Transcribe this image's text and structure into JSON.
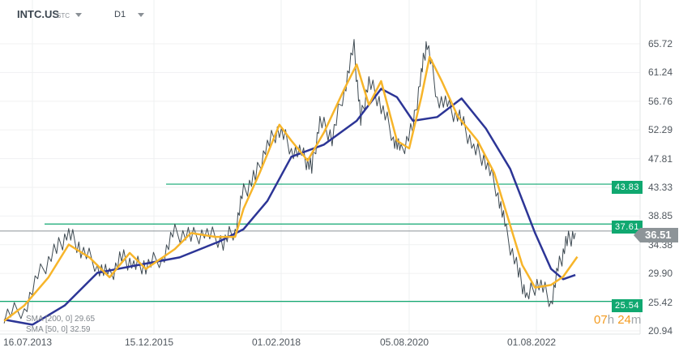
{
  "header": {
    "symbol": "INTC.US",
    "type": "STC",
    "timeframe": "D1"
  },
  "colors": {
    "price": "#3e4a52",
    "sma50": "#f7b52a",
    "sma200": "#2c3596",
    "level": "#10a870",
    "current": "#8d9498"
  },
  "legend": {
    "sma200": "SMA [200, 0] 29.65",
    "sma50": "SMA [50, 0] 32.59"
  },
  "timer": {
    "hours": "07",
    "h": "h",
    "minutes": "24",
    "m": "m"
  },
  "current_price": "36.51",
  "levels": [
    "43.83",
    "37.61",
    "25.54"
  ],
  "chart_data": {
    "type": "line",
    "y_ticks": [
      "65.72",
      "61.24",
      "56.76",
      "52.29",
      "47.81",
      "43.33",
      "38.85",
      "34.38",
      "29.90",
      "25.42",
      "20.94"
    ],
    "ylim": [
      20.94,
      65.72
    ],
    "x_ticks": [
      {
        "label": "16.07.2013",
        "year": 2013.54
      },
      {
        "label": "15.12.2015",
        "year": 2015.95
      },
      {
        "label": "01.02.2018",
        "year": 2018.08
      },
      {
        "label": "05.08.2020",
        "year": 2020.59
      },
      {
        "label": "01.08.2022",
        "year": 2022.58
      }
    ],
    "levels": [
      43.83,
      37.61,
      25.54
    ],
    "current": 36.51,
    "series": [
      {
        "name": "INTC.US",
        "points": [
          [
            2012.98,
            23.5
          ],
          [
            2013.38,
            24.4
          ],
          [
            2013.7,
            30.0
          ],
          [
            2014.02,
            33.7
          ],
          [
            2014.26,
            36.2
          ],
          [
            2014.5,
            33.7
          ],
          [
            2014.83,
            31.2
          ],
          [
            2015.07,
            29.3
          ],
          [
            2015.31,
            32.4
          ],
          [
            2015.55,
            31.2
          ],
          [
            2015.79,
            31.2
          ],
          [
            2016.09,
            32.4
          ],
          [
            2016.3,
            36.2
          ],
          [
            2016.57,
            35.6
          ],
          [
            2016.84,
            36.2
          ],
          [
            2017.11,
            34.9
          ],
          [
            2017.31,
            36.8
          ],
          [
            2017.45,
            42.5
          ],
          [
            2017.65,
            45.0
          ],
          [
            2017.85,
            50.0
          ],
          [
            2018.05,
            52.5
          ],
          [
            2018.28,
            49.4
          ],
          [
            2018.52,
            48.1
          ],
          [
            2018.68,
            46.2
          ],
          [
            2018.84,
            53.7
          ],
          [
            2019.08,
            51.2
          ],
          [
            2019.32,
            58.7
          ],
          [
            2019.51,
            65.0
          ],
          [
            2019.64,
            53.7
          ],
          [
            2019.8,
            59.9
          ],
          [
            2020.04,
            56.2
          ],
          [
            2020.28,
            51.2
          ],
          [
            2020.43,
            48.7
          ],
          [
            2020.65,
            52.5
          ],
          [
            2020.78,
            61.2
          ],
          [
            2020.87,
            66.2
          ],
          [
            2021.03,
            57.4
          ],
          [
            2021.22,
            55.6
          ],
          [
            2021.41,
            53.7
          ],
          [
            2021.6,
            49.4
          ],
          [
            2021.79,
            47.5
          ],
          [
            2021.98,
            42.5
          ],
          [
            2022.11,
            36.2
          ],
          [
            2022.3,
            30.0
          ],
          [
            2022.43,
            26.2
          ],
          [
            2022.62,
            28.7
          ],
          [
            2022.81,
            25.6
          ],
          [
            2022.94,
            31.2
          ],
          [
            2023.06,
            34.9
          ],
          [
            2023.19,
            36.2
          ]
        ]
      },
      {
        "name": "SMA 50",
        "points": [
          [
            2012.98,
            22.5
          ],
          [
            2013.38,
            24.9
          ],
          [
            2013.86,
            29.3
          ],
          [
            2014.26,
            34.4
          ],
          [
            2014.67,
            32.4
          ],
          [
            2015.07,
            29.3
          ],
          [
            2015.47,
            33.1
          ],
          [
            2015.79,
            30.6
          ],
          [
            2016.3,
            33.7
          ],
          [
            2016.57,
            36.2
          ],
          [
            2016.98,
            35.6
          ],
          [
            2017.31,
            35.6
          ],
          [
            2017.45,
            40.0
          ],
          [
            2017.72,
            45.6
          ],
          [
            2018.05,
            53.1
          ],
          [
            2018.28,
            50.6
          ],
          [
            2018.6,
            47.5
          ],
          [
            2018.92,
            51.9
          ],
          [
            2019.32,
            58.7
          ],
          [
            2019.56,
            62.5
          ],
          [
            2019.8,
            56.2
          ],
          [
            2020.04,
            59.9
          ],
          [
            2020.35,
            50.6
          ],
          [
            2020.59,
            49.4
          ],
          [
            2020.78,
            57.4
          ],
          [
            2020.91,
            63.7
          ],
          [
            2021.1,
            59.9
          ],
          [
            2021.35,
            54.4
          ],
          [
            2021.66,
            50.6
          ],
          [
            2021.92,
            45.6
          ],
          [
            2022.17,
            37.4
          ],
          [
            2022.36,
            31.2
          ],
          [
            2022.56,
            27.7
          ],
          [
            2022.81,
            28.1
          ],
          [
            2023.0,
            29.4
          ],
          [
            2023.22,
            32.5
          ]
        ]
      },
      {
        "name": "SMA 200",
        "points": [
          [
            2012.98,
            22.7
          ],
          [
            2013.54,
            21.9
          ],
          [
            2014.18,
            24.9
          ],
          [
            2014.83,
            30.0
          ],
          [
            2015.63,
            31.2
          ],
          [
            2016.38,
            32.4
          ],
          [
            2017.05,
            34.9
          ],
          [
            2017.45,
            36.8
          ],
          [
            2017.85,
            41.2
          ],
          [
            2018.28,
            48.1
          ],
          [
            2018.92,
            50.0
          ],
          [
            2019.56,
            53.7
          ],
          [
            2020.04,
            58.7
          ],
          [
            2020.35,
            57.4
          ],
          [
            2020.65,
            53.7
          ],
          [
            2021.03,
            54.3
          ],
          [
            2021.41,
            57.2
          ],
          [
            2021.79,
            52.5
          ],
          [
            2022.17,
            46.2
          ],
          [
            2022.56,
            36.2
          ],
          [
            2022.81,
            30.6
          ],
          [
            2023.0,
            29.0
          ],
          [
            2023.19,
            29.65
          ]
        ]
      }
    ]
  }
}
